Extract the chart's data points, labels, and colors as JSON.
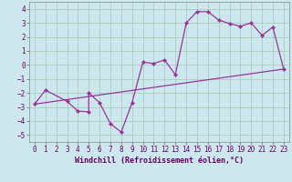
{
  "xlabel": "Windchill (Refroidissement éolien,°C)",
  "background_color": "#cce8ee",
  "grid_color": "#aaccbb",
  "line_color": "#993399",
  "xlim": [
    -0.5,
    23.5
  ],
  "ylim": [
    -5.5,
    4.5
  ],
  "xticks": [
    0,
    1,
    2,
    3,
    4,
    5,
    6,
    7,
    8,
    9,
    10,
    11,
    12,
    13,
    14,
    15,
    16,
    17,
    18,
    19,
    20,
    21,
    22,
    23
  ],
  "yticks": [
    -5,
    -4,
    -3,
    -2,
    -1,
    0,
    1,
    2,
    3,
    4
  ],
  "series1_x": [
    0,
    1,
    3,
    4,
    5,
    5,
    6,
    7,
    8,
    9,
    10,
    11,
    12,
    13,
    14,
    15,
    16,
    17,
    18,
    19,
    20,
    21,
    22,
    23
  ],
  "series1_y": [
    -2.8,
    -1.8,
    -2.6,
    -3.3,
    -3.35,
    -2.0,
    -2.7,
    -4.2,
    -4.8,
    -2.7,
    0.2,
    0.1,
    0.35,
    -0.7,
    3.0,
    3.8,
    3.8,
    3.2,
    2.95,
    2.75,
    3.0,
    2.1,
    2.7,
    -0.3
  ],
  "series2_x": [
    0,
    23
  ],
  "series2_y": [
    -2.8,
    -0.3
  ],
  "tick_fontsize": 5.5,
  "xlabel_fontsize": 6.0
}
